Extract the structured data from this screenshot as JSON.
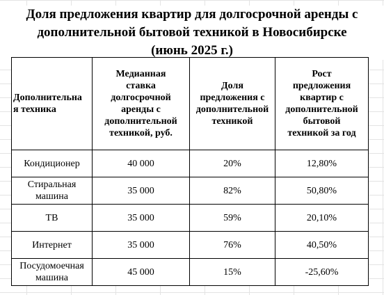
{
  "title": {
    "line1": "Доля предложения квартир для долгосрочной аренды с",
    "line2": "дополнительной бытовой техникой в Новосибирске",
    "line3": "(июнь 2025 г.)"
  },
  "table": {
    "headers": [
      [
        "Дополнительна",
        "я техника"
      ],
      [
        "Медианная",
        "ставка",
        "долгосрочной",
        "аренды с",
        "дополнительной",
        "техникой, руб."
      ],
      [
        "Доля",
        "предложения с",
        "дополнительной",
        "техникой"
      ],
      [
        "Рост",
        "предложения",
        "квартир с",
        "дополнительной",
        "бытовой",
        "техникой за год"
      ]
    ],
    "rows": [
      {
        "appliance": [
          "Кондиционер"
        ],
        "rent": "40 000",
        "share": "20%",
        "growth": "12,80%"
      },
      {
        "appliance": [
          "Стиральная",
          "машина"
        ],
        "rent": "35 000",
        "share": "82%",
        "growth": "50,80%"
      },
      {
        "appliance": [
          "ТВ"
        ],
        "rent": "35 000",
        "share": "59%",
        "growth": "20,10%"
      },
      {
        "appliance": [
          "Интернет"
        ],
        "rent": "35 000",
        "share": "76%",
        "growth": "40,50%"
      },
      {
        "appliance": [
          "Посудомоечная",
          "машина"
        ],
        "rent": "45 000",
        "share": "15%",
        "growth": "-25,60%"
      }
    ]
  }
}
